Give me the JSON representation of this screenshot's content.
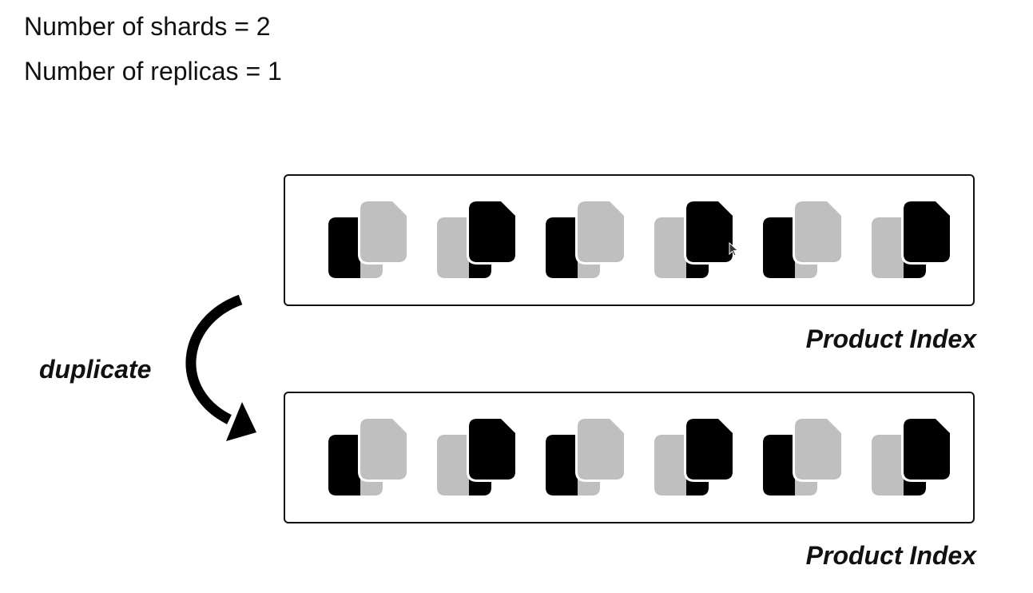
{
  "settings": {
    "shards_line": "Number of shards = 2",
    "replicas_line": "Number of replicas = 1"
  },
  "arrow_label": "duplicate",
  "indices": [
    {
      "label": "Product Index",
      "documents": [
        "primary-black",
        "primary-gray",
        "primary-black",
        "primary-gray",
        "primary-black",
        "primary-gray"
      ]
    },
    {
      "label": "Product Index",
      "documents": [
        "primary-black",
        "primary-gray",
        "primary-black",
        "primary-gray",
        "primary-black",
        "primary-gray"
      ]
    }
  ],
  "colors": {
    "black": "#000000",
    "gray": "#bfbfbf",
    "border": "#111111",
    "background": "#ffffff"
  },
  "icons": {
    "document": "stacked-documents-icon",
    "arrow": "curved-arrow-icon",
    "cursor": "mouse-pointer-icon"
  }
}
